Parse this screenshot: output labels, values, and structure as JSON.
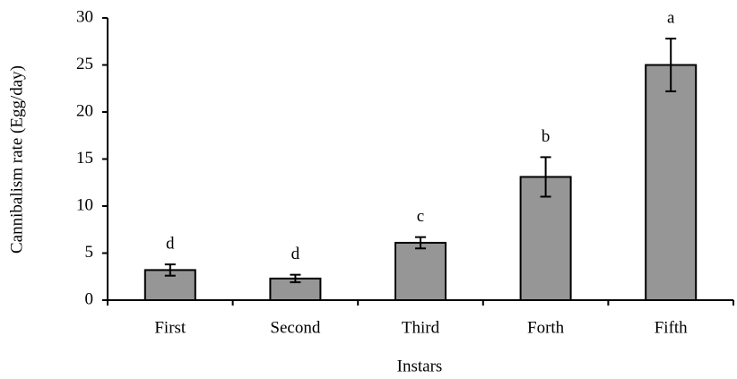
{
  "chart_data": {
    "type": "bar",
    "xlabel": "Instars",
    "ylabel": "Cannibalism rate (Egg/day)",
    "categories": [
      "First",
      "Second",
      "Third",
      "Forth",
      "Fifth"
    ],
    "values": [
      3.2,
      2.3,
      6.1,
      13.1,
      25.0
    ],
    "errors": [
      0.6,
      0.4,
      0.6,
      2.1,
      2.8
    ],
    "letters": [
      "d",
      "d",
      "c",
      "b",
      "a"
    ],
    "color": "#969696",
    "ylim": [
      0,
      30
    ],
    "yticks": [
      0,
      5,
      10,
      15,
      20,
      25,
      30
    ],
    "grid": false
  }
}
